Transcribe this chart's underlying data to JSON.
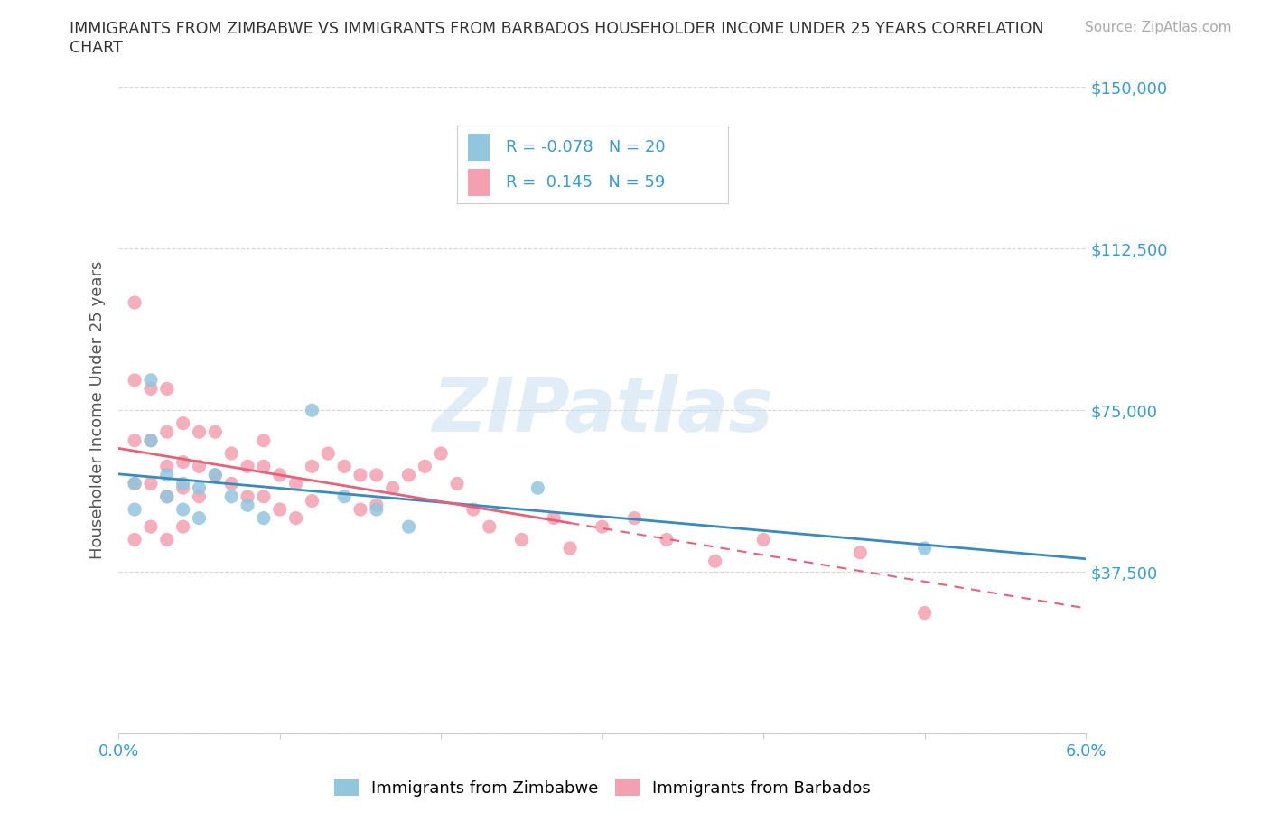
{
  "title_line1": "IMMIGRANTS FROM ZIMBABWE VS IMMIGRANTS FROM BARBADOS HOUSEHOLDER INCOME UNDER 25 YEARS CORRELATION",
  "title_line2": "CHART",
  "source_text": "Source: ZipAtlas.com",
  "ylabel": "Householder Income Under 25 years",
  "xlim": [
    0.0,
    0.06
  ],
  "ylim": [
    0,
    150000
  ],
  "yticks": [
    0,
    37500,
    75000,
    112500,
    150000
  ],
  "ytick_labels": [
    "",
    "$37,500",
    "$75,000",
    "$112,500",
    "$150,000"
  ],
  "xticks": [
    0.0,
    0.01,
    0.02,
    0.03,
    0.04,
    0.05,
    0.06
  ],
  "zimbabwe_color": "#92c5de",
  "barbados_color": "#f4a0b0",
  "zimbabwe_line_color": "#3a8abf",
  "barbados_line_color": "#e8607a",
  "zimbabwe_R": -0.078,
  "zimbabwe_N": 20,
  "barbados_R": 0.145,
  "barbados_N": 59,
  "watermark_text": "ZIPatlas",
  "zimbabwe_x": [
    0.001,
    0.001,
    0.002,
    0.002,
    0.003,
    0.003,
    0.004,
    0.004,
    0.005,
    0.005,
    0.006,
    0.007,
    0.008,
    0.009,
    0.012,
    0.014,
    0.016,
    0.018,
    0.026,
    0.05
  ],
  "zimbabwe_y": [
    58000,
    52000,
    82000,
    68000,
    60000,
    55000,
    58000,
    52000,
    57000,
    50000,
    60000,
    55000,
    53000,
    50000,
    75000,
    55000,
    52000,
    48000,
    57000,
    43000
  ],
  "barbados_x": [
    0.001,
    0.001,
    0.001,
    0.001,
    0.001,
    0.002,
    0.002,
    0.002,
    0.002,
    0.003,
    0.003,
    0.003,
    0.003,
    0.003,
    0.004,
    0.004,
    0.004,
    0.004,
    0.005,
    0.005,
    0.005,
    0.006,
    0.006,
    0.007,
    0.007,
    0.008,
    0.008,
    0.009,
    0.009,
    0.009,
    0.01,
    0.01,
    0.011,
    0.011,
    0.012,
    0.012,
    0.013,
    0.014,
    0.015,
    0.015,
    0.016,
    0.016,
    0.017,
    0.018,
    0.019,
    0.02,
    0.021,
    0.022,
    0.023,
    0.025,
    0.027,
    0.028,
    0.03,
    0.032,
    0.034,
    0.037,
    0.04,
    0.046,
    0.05
  ],
  "barbados_y": [
    100000,
    82000,
    68000,
    58000,
    45000,
    80000,
    68000,
    58000,
    48000,
    80000,
    70000,
    62000,
    55000,
    45000,
    72000,
    63000,
    57000,
    48000,
    70000,
    62000,
    55000,
    70000,
    60000,
    65000,
    58000,
    62000,
    55000,
    68000,
    62000,
    55000,
    60000,
    52000,
    58000,
    50000,
    62000,
    54000,
    65000,
    62000,
    60000,
    52000,
    60000,
    53000,
    57000,
    60000,
    62000,
    65000,
    58000,
    52000,
    48000,
    45000,
    50000,
    43000,
    48000,
    50000,
    45000,
    40000,
    45000,
    42000,
    28000
  ]
}
